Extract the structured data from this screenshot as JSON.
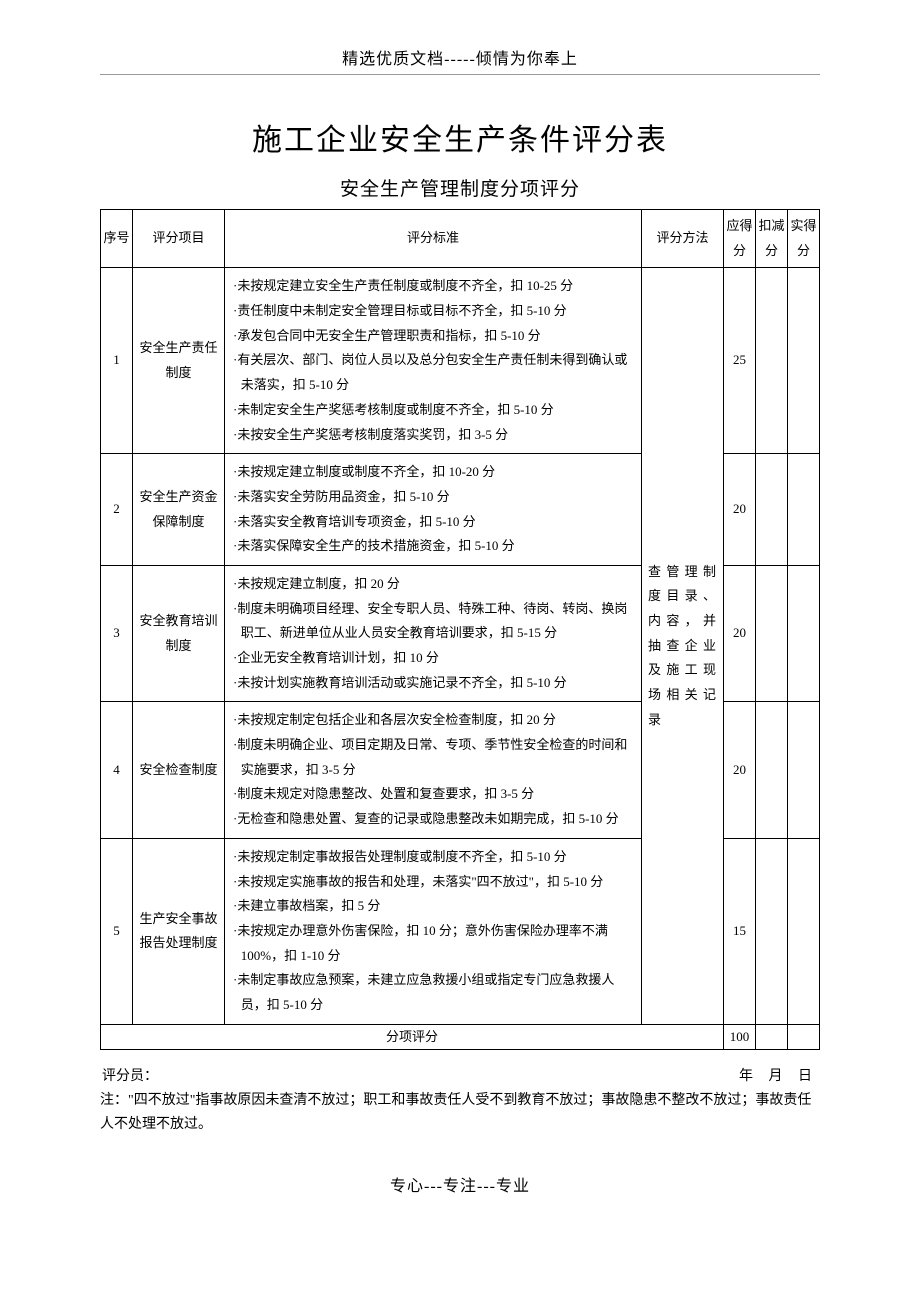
{
  "header": "精选优质文档-----倾情为你奉上",
  "title": "施工企业安全生产条件评分表",
  "subtitle": "安全生产管理制度分项评分",
  "tableHeader": {
    "seq": "序号",
    "item": "评分项目",
    "criteria": "评分标准",
    "method": "评分方法",
    "maxScore": "应得分",
    "deduction": "扣减分",
    "actual": "实得分"
  },
  "methodText": "查管理制度目录、内容，并抽查企业及施工现场相关记录",
  "rows": [
    {
      "seq": "1",
      "item": "安全生产责任制度",
      "criteria": [
        "·未按规定建立安全生产责任制度或制度不齐全，扣 10-25 分",
        "·责任制度中未制定安全管理目标或目标不齐全，扣 5-10 分",
        "·承发包合同中无安全生产管理职责和指标，扣 5-10 分",
        "·有关层次、部门、岗位人员以及总分包安全生产责任制未得到确认或未落实，扣 5-10 分",
        "·未制定安全生产奖惩考核制度或制度不齐全，扣 5-10 分",
        "·未按安全生产奖惩考核制度落实奖罚，扣 3-5 分"
      ],
      "maxScore": "25"
    },
    {
      "seq": "2",
      "item": "安全生产资金保障制度",
      "criteria": [
        "·未按规定建立制度或制度不齐全，扣 10-20 分",
        "·未落实安全劳防用品资金，扣 5-10 分",
        "·未落实安全教育培训专项资金，扣 5-10 分",
        "·未落实保障安全生产的技术措施资金，扣 5-10 分"
      ],
      "maxScore": "20"
    },
    {
      "seq": "3",
      "item": "安全教育培训制度",
      "criteria": [
        "·未按规定建立制度，扣 20 分",
        "·制度未明确项目经理、安全专职人员、特殊工种、待岗、转岗、换岗职工、新进单位从业人员安全教育培训要求，扣 5-15 分",
        "·企业无安全教育培训计划，扣 10 分",
        "·未按计划实施教育培训活动或实施记录不齐全，扣 5-10 分"
      ],
      "maxScore": "20"
    },
    {
      "seq": "4",
      "item": "安全检查制度",
      "criteria": [
        "·未按规定制定包括企业和各层次安全检查制度，扣 20 分",
        "·制度未明确企业、项目定期及日常、专项、季节性安全检查的时间和实施要求，扣 3-5 分",
        "·制度未规定对隐患整改、处置和复查要求，扣 3-5 分",
        "·无检查和隐患处置、复查的记录或隐患整改未如期完成，扣 5-10 分"
      ],
      "maxScore": "20"
    },
    {
      "seq": "5",
      "item": "生产安全事故报告处理制度",
      "criteria": [
        "·未按规定制定事故报告处理制度或制度不齐全，扣 5-10 分",
        "·未按规定实施事故的报告和处理，未落实\"四不放过\"，扣 5-10 分",
        "·未建立事故档案，扣 5 分",
        "·未按规定办理意外伤害保险，扣 10 分；意外伤害保险办理率不满 100%，扣 1-10 分",
        "·未制定事故应急预案，未建立应急救援小组或指定专门应急救援人员，扣 5-10 分"
      ],
      "maxScore": "15"
    }
  ],
  "subtotal": {
    "label": "分项评分",
    "total": "100"
  },
  "footer": {
    "evaluator": "评分员：",
    "date": "年 月 日",
    "note": "注：\"四不放过\"指事故原因未查清不放过；职工和事故责任人受不到教育不放过；事故隐患不整改不放过；事故责任人不处理不放过。"
  },
  "bottom": "专心---专注---专业"
}
